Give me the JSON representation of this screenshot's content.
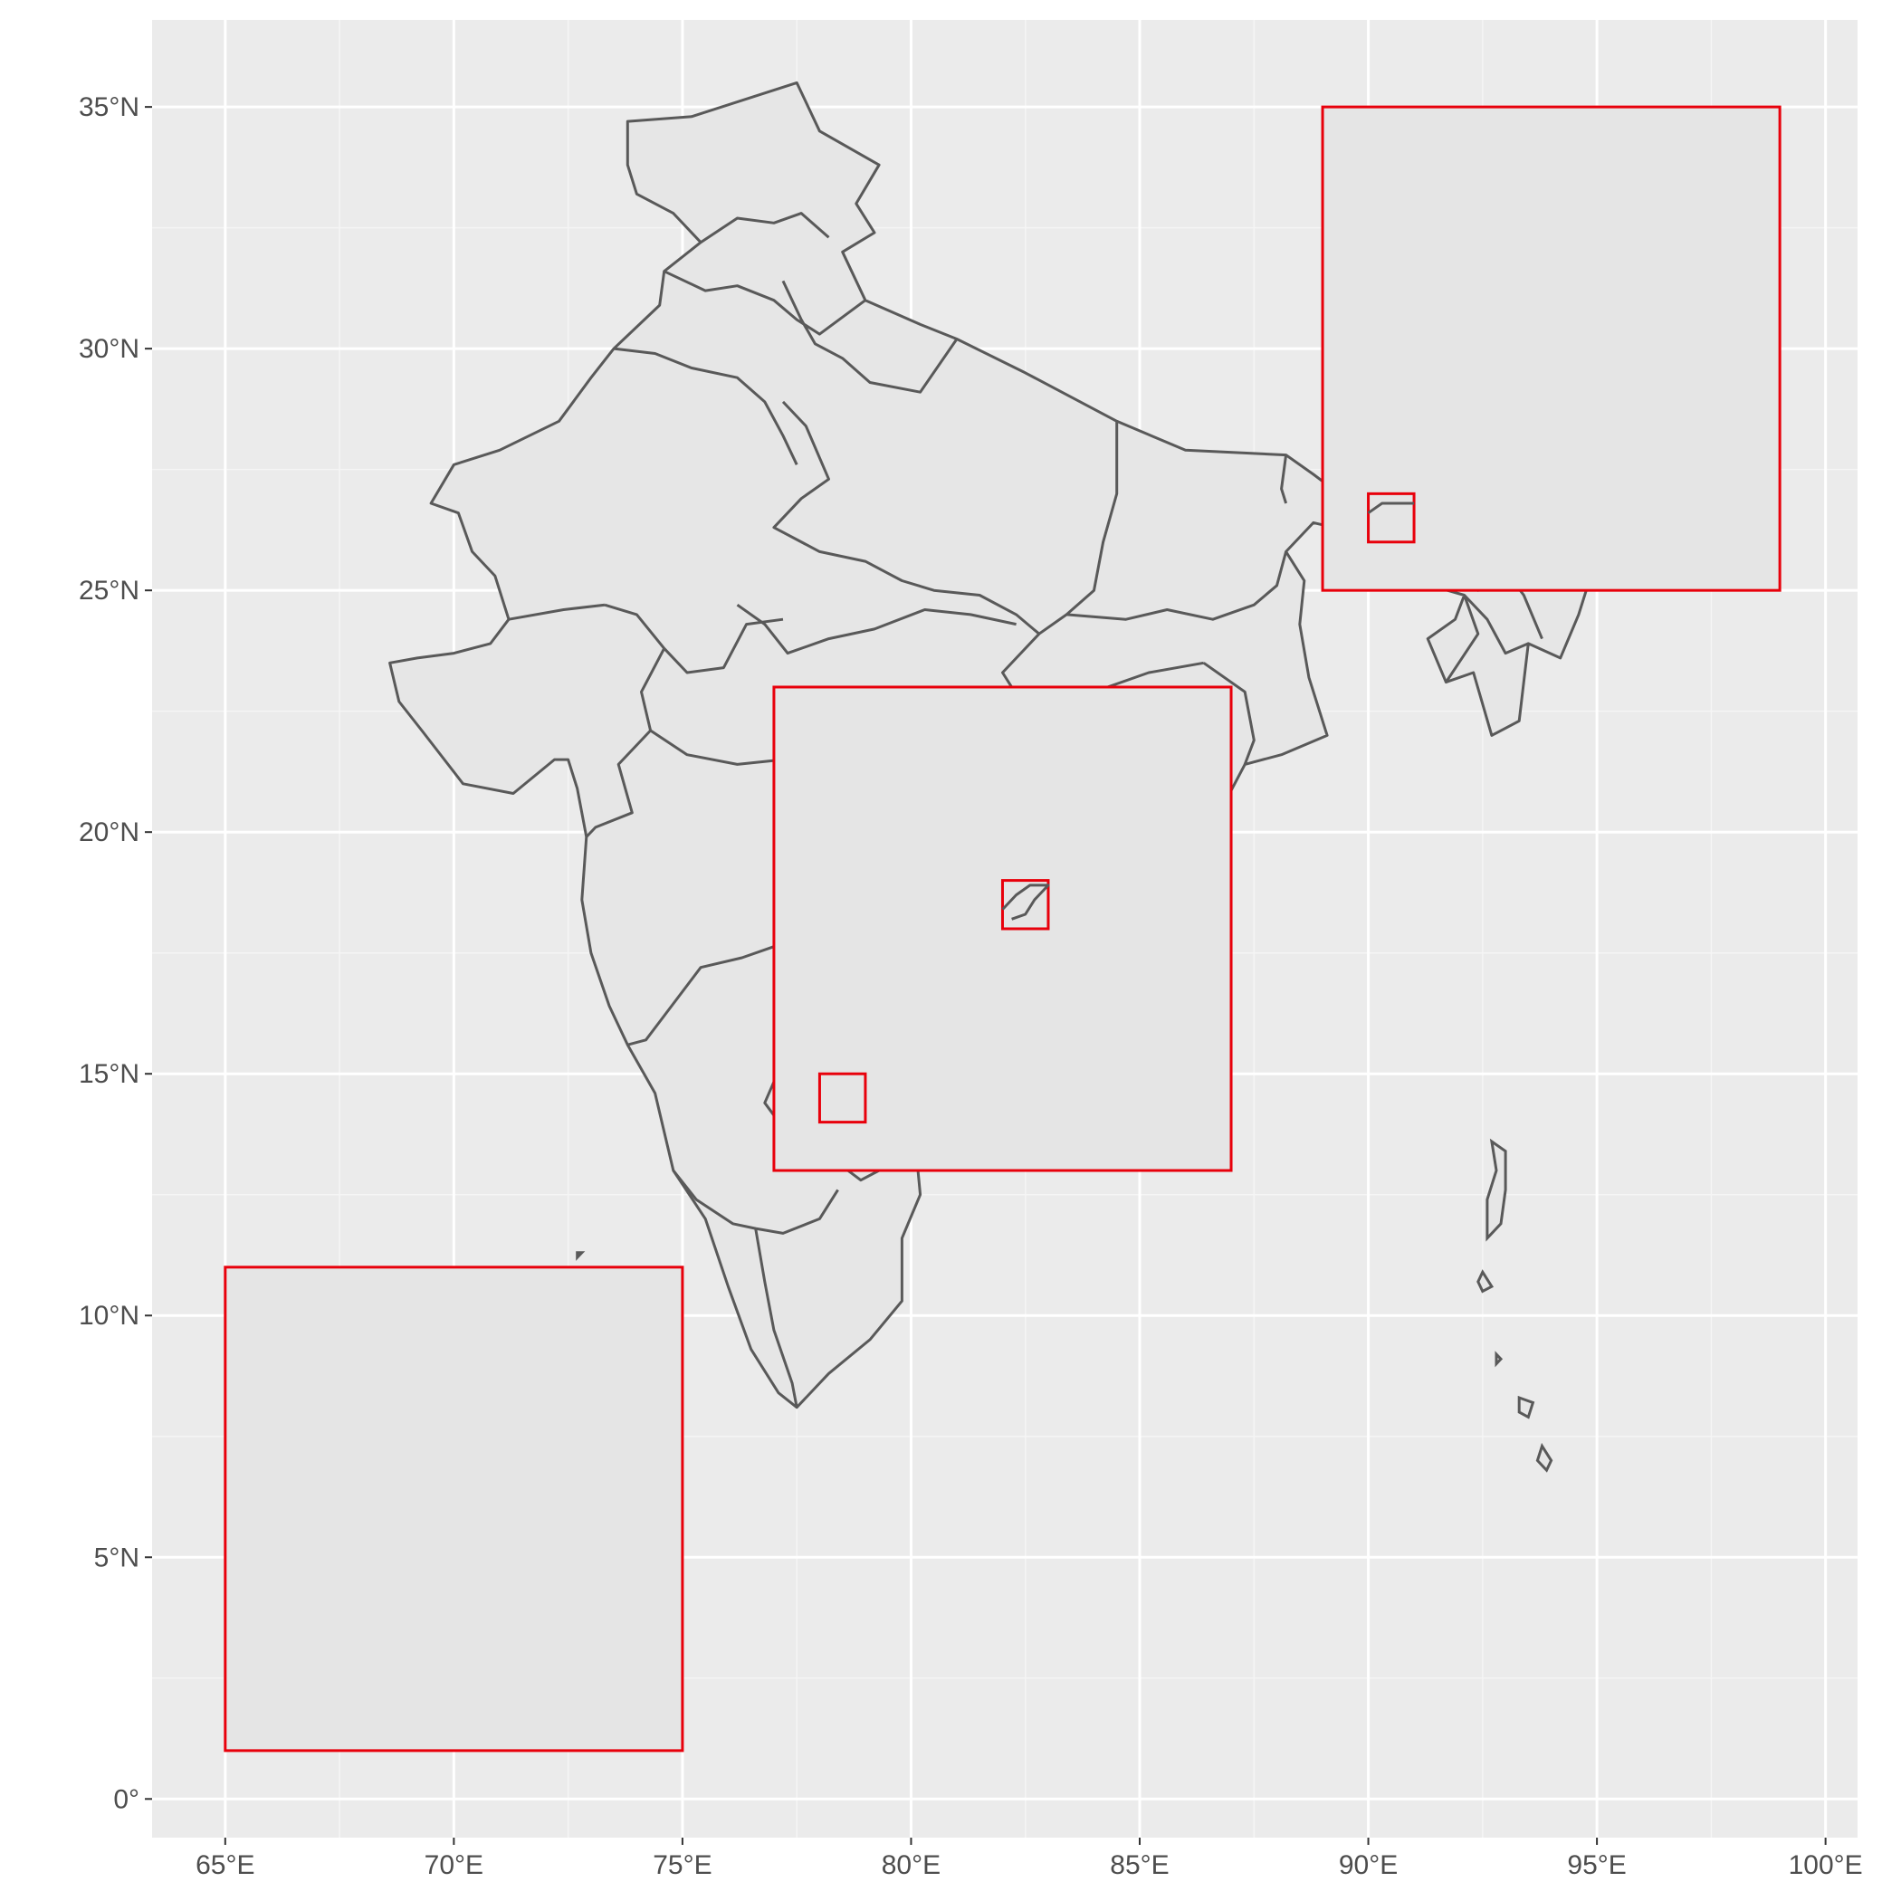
{
  "map": {
    "xlim": [
      63.4,
      100.7
    ],
    "ylim": [
      -0.8,
      36.8
    ],
    "x_ticks": [
      {
        "value": 65,
        "label": "65°E"
      },
      {
        "value": 70,
        "label": "70°E"
      },
      {
        "value": 75,
        "label": "75°E"
      },
      {
        "value": 80,
        "label": "80°E"
      },
      {
        "value": 85,
        "label": "85°E"
      },
      {
        "value": 90,
        "label": "90°E"
      },
      {
        "value": 95,
        "label": "95°E"
      },
      {
        "value": 100,
        "label": "100°E"
      }
    ],
    "y_ticks": [
      {
        "value": 0,
        "label": "0°"
      },
      {
        "value": 5,
        "label": "5°N"
      },
      {
        "value": 10,
        "label": "10°N"
      },
      {
        "value": 15,
        "label": "15°N"
      },
      {
        "value": 20,
        "label": "20°N"
      },
      {
        "value": 25,
        "label": "25°N"
      },
      {
        "value": 30,
        "label": "30°N"
      },
      {
        "value": 35,
        "label": "35°N"
      }
    ],
    "colors": {
      "panel": "#ebebeb",
      "grid": "#ffffff",
      "land_fill": "#e6e6e6",
      "land_stroke": "#595959",
      "box_stroke": "#e8000b"
    },
    "outline": [
      [
        73.8,
        34.7
      ],
      [
        75.2,
        34.8
      ],
      [
        77.5,
        35.5
      ],
      [
        78.0,
        34.5
      ],
      [
        79.3,
        33.8
      ],
      [
        78.8,
        33.0
      ],
      [
        79.2,
        32.4
      ],
      [
        78.5,
        32.0
      ],
      [
        79.0,
        31.0
      ],
      [
        80.2,
        30.5
      ],
      [
        81.0,
        30.2
      ],
      [
        82.5,
        29.5
      ],
      [
        84.5,
        28.5
      ],
      [
        86.0,
        27.9
      ],
      [
        88.2,
        27.8
      ],
      [
        88.8,
        27.4
      ],
      [
        89.5,
        26.9
      ],
      [
        91.0,
        26.8
      ],
      [
        92.1,
        26.9
      ],
      [
        92.5,
        27.8
      ],
      [
        93.8,
        28.5
      ],
      [
        95.4,
        29.2
      ],
      [
        96.4,
        29.0
      ],
      [
        97.2,
        28.3
      ],
      [
        96.9,
        27.4
      ],
      [
        96.0,
        27.1
      ],
      [
        95.2,
        26.4
      ],
      [
        94.9,
        25.4
      ],
      [
        94.6,
        24.5
      ],
      [
        94.2,
        23.6
      ],
      [
        93.5,
        23.9
      ],
      [
        93.3,
        22.3
      ],
      [
        92.7,
        22.0
      ],
      [
        92.3,
        23.3
      ],
      [
        91.7,
        23.1
      ],
      [
        91.3,
        24.0
      ],
      [
        91.9,
        24.4
      ],
      [
        92.1,
        24.9
      ],
      [
        91.0,
        25.2
      ],
      [
        89.9,
        25.3
      ],
      [
        89.7,
        26.2
      ],
      [
        88.8,
        26.4
      ],
      [
        88.2,
        25.8
      ],
      [
        88.6,
        25.2
      ],
      [
        88.5,
        24.3
      ],
      [
        88.7,
        23.2
      ],
      [
        89.1,
        22.0
      ],
      [
        88.1,
        21.6
      ],
      [
        87.3,
        21.4
      ],
      [
        86.8,
        20.5
      ],
      [
        85.5,
        19.6
      ],
      [
        84.6,
        18.6
      ],
      [
        83.5,
        17.8
      ],
      [
        82.3,
        16.6
      ],
      [
        81.3,
        16.0
      ],
      [
        80.2,
        15.2
      ],
      [
        80.1,
        13.5
      ],
      [
        80.2,
        12.5
      ],
      [
        79.8,
        11.6
      ],
      [
        79.8,
        10.3
      ],
      [
        79.1,
        9.5
      ],
      [
        78.2,
        8.8
      ],
      [
        77.5,
        8.1
      ],
      [
        77.1,
        8.4
      ],
      [
        76.5,
        9.3
      ],
      [
        76.0,
        10.6
      ],
      [
        75.5,
        12.0
      ],
      [
        74.8,
        13.0
      ],
      [
        74.4,
        14.6
      ],
      [
        73.8,
        15.6
      ],
      [
        73.4,
        16.4
      ],
      [
        73.0,
        17.5
      ],
      [
        72.8,
        18.6
      ],
      [
        72.9,
        19.9
      ],
      [
        72.7,
        20.9
      ],
      [
        72.5,
        21.5
      ],
      [
        72.2,
        21.5
      ],
      [
        71.3,
        20.8
      ],
      [
        70.2,
        21.0
      ],
      [
        69.3,
        22.1
      ],
      [
        68.8,
        22.7
      ],
      [
        68.6,
        23.5
      ],
      [
        69.2,
        23.6
      ],
      [
        70.0,
        23.7
      ],
      [
        70.8,
        23.9
      ],
      [
        71.2,
        24.4
      ],
      [
        70.9,
        25.3
      ],
      [
        70.4,
        25.8
      ],
      [
        70.1,
        26.6
      ],
      [
        69.5,
        26.8
      ],
      [
        70.0,
        27.6
      ],
      [
        71.0,
        27.9
      ],
      [
        72.3,
        28.5
      ],
      [
        73.0,
        29.4
      ],
      [
        73.5,
        30.0
      ],
      [
        74.5,
        30.9
      ],
      [
        74.6,
        31.6
      ],
      [
        75.4,
        32.2
      ],
      [
        74.8,
        32.8
      ],
      [
        74.0,
        33.2
      ],
      [
        73.8,
        33.8
      ],
      [
        73.8,
        34.7
      ]
    ],
    "borders": [
      [
        [
          75.4,
          32.2
        ],
        [
          76.2,
          32.7
        ],
        [
          77.0,
          32.6
        ],
        [
          77.6,
          32.8
        ],
        [
          78.2,
          32.3
        ]
      ],
      [
        [
          74.6,
          31.6
        ],
        [
          75.5,
          31.2
        ],
        [
          76.2,
          31.3
        ],
        [
          77.0,
          31.0
        ],
        [
          77.5,
          30.6
        ],
        [
          78.0,
          30.3
        ],
        [
          79.0,
          31.0
        ]
      ],
      [
        [
          77.2,
          31.4
        ],
        [
          77.6,
          30.6
        ],
        [
          77.9,
          30.1
        ],
        [
          78.5,
          29.8
        ],
        [
          79.1,
          29.3
        ],
        [
          80.2,
          29.1
        ],
        [
          81.0,
          30.2
        ]
      ],
      [
        [
          73.5,
          30.0
        ],
        [
          74.4,
          29.9
        ],
        [
          75.2,
          29.6
        ],
        [
          76.2,
          29.4
        ],
        [
          76.8,
          28.9
        ],
        [
          77.2,
          28.2
        ],
        [
          77.5,
          27.6
        ]
      ],
      [
        [
          77.2,
          28.9
        ],
        [
          77.7,
          28.4
        ],
        [
          78.2,
          27.3
        ],
        [
          77.6,
          26.9
        ],
        [
          77.0,
          26.3
        ],
        [
          78.0,
          25.8
        ],
        [
          79.0,
          25.6
        ],
        [
          79.8,
          25.2
        ],
        [
          80.5,
          25.0
        ],
        [
          81.5,
          24.9
        ],
        [
          82.3,
          24.5
        ],
        [
          82.8,
          24.1
        ],
        [
          83.4,
          24.5
        ],
        [
          84.0,
          25.0
        ],
        [
          84.2,
          26.0
        ],
        [
          84.5,
          27.0
        ],
        [
          84.5,
          28.5
        ]
      ],
      [
        [
          76.2,
          24.7
        ],
        [
          76.8,
          24.3
        ],
        [
          77.3,
          23.7
        ],
        [
          78.2,
          24.0
        ],
        [
          79.2,
          24.2
        ],
        [
          80.3,
          24.6
        ],
        [
          81.3,
          24.5
        ],
        [
          82.3,
          24.3
        ]
      ],
      [
        [
          73.3,
          24.7
        ],
        [
          74.0,
          24.5
        ],
        [
          74.6,
          23.8
        ],
        [
          75.1,
          23.3
        ],
        [
          75.9,
          23.4
        ],
        [
          76.4,
          24.3
        ],
        [
          77.2,
          24.4
        ]
      ],
      [
        [
          71.2,
          24.4
        ],
        [
          72.4,
          24.6
        ],
        [
          73.3,
          24.7
        ]
      ],
      [
        [
          74.6,
          23.8
        ],
        [
          74.1,
          22.9
        ],
        [
          74.3,
          22.1
        ],
        [
          73.6,
          21.4
        ],
        [
          73.9,
          20.4
        ],
        [
          73.1,
          20.1
        ],
        [
          72.9,
          19.9
        ]
      ],
      [
        [
          74.3,
          22.1
        ],
        [
          75.1,
          21.6
        ],
        [
          76.2,
          21.4
        ],
        [
          77.2,
          21.5
        ],
        [
          78.4,
          21.4
        ],
        [
          79.3,
          21.5
        ],
        [
          80.2,
          21.6
        ],
        [
          80.6,
          22.3
        ],
        [
          81.5,
          21.9
        ],
        [
          82.3,
          22.4
        ],
        [
          83.3,
          22.3
        ],
        [
          84.0,
          22.9
        ],
        [
          85.2,
          23.3
        ],
        [
          86.4,
          23.5
        ]
      ],
      [
        [
          82.8,
          24.1
        ],
        [
          82.0,
          23.3
        ],
        [
          82.6,
          22.4
        ],
        [
          83.3,
          21.6
        ],
        [
          82.4,
          20.6
        ],
        [
          81.8,
          19.3
        ],
        [
          81.2,
          18.2
        ],
        [
          81.0,
          17.8
        ]
      ],
      [
        [
          83.4,
          24.5
        ],
        [
          84.7,
          24.4
        ],
        [
          85.6,
          24.6
        ],
        [
          86.6,
          24.4
        ],
        [
          87.5,
          24.7
        ],
        [
          88.0,
          25.1
        ],
        [
          88.2,
          25.8
        ]
      ],
      [
        [
          86.4,
          23.5
        ],
        [
          87.3,
          22.9
        ],
        [
          87.5,
          21.9
        ],
        [
          87.3,
          21.4
        ]
      ],
      [
        [
          80.2,
          21.6
        ],
        [
          79.9,
          20.5
        ],
        [
          79.7,
          19.6
        ],
        [
          79.4,
          18.6
        ],
        [
          78.2,
          18.1
        ],
        [
          77.5,
          17.8
        ],
        [
          76.9,
          17.6
        ],
        [
          76.3,
          17.4
        ],
        [
          75.4,
          17.2
        ],
        [
          74.6,
          16.2
        ],
        [
          74.2,
          15.7
        ],
        [
          73.8,
          15.6
        ]
      ],
      [
        [
          80.2,
          18.7
        ],
        [
          79.5,
          17.9
        ],
        [
          79.2,
          17.1
        ],
        [
          79.4,
          16.0
        ],
        [
          80.1,
          15.9
        ]
      ],
      [
        [
          77.5,
          17.8
        ],
        [
          77.2,
          16.6
        ],
        [
          77.4,
          15.7
        ],
        [
          76.8,
          14.4
        ],
        [
          77.5,
          13.5
        ],
        [
          78.2,
          13.3
        ],
        [
          78.9,
          12.8
        ],
        [
          79.3,
          13.0
        ],
        [
          80.2,
          13.5
        ]
      ],
      [
        [
          74.8,
          13.0
        ],
        [
          75.3,
          12.4
        ],
        [
          76.1,
          11.9
        ],
        [
          76.6,
          11.8
        ],
        [
          77.2,
          11.7
        ],
        [
          78.0,
          12.0
        ],
        [
          78.4,
          12.6
        ]
      ],
      [
        [
          76.6,
          11.8
        ],
        [
          76.8,
          10.7
        ],
        [
          77.0,
          9.7
        ],
        [
          77.4,
          8.6
        ],
        [
          77.5,
          8.1
        ]
      ],
      [
        [
          91.0,
          25.2
        ],
        [
          91.8,
          25.2
        ],
        [
          92.4,
          25.0
        ],
        [
          93.0,
          25.4
        ],
        [
          93.5,
          26.0
        ],
        [
          94.1,
          26.5
        ],
        [
          95.2,
          26.4
        ]
      ],
      [
        [
          92.1,
          24.9
        ],
        [
          92.6,
          24.4
        ],
        [
          93.0,
          23.7
        ],
        [
          93.5,
          23.9
        ]
      ],
      [
        [
          91.7,
          23.1
        ],
        [
          92.4,
          24.1
        ],
        [
          92.1,
          24.9
        ]
      ],
      [
        [
          93.0,
          25.4
        ],
        [
          93.4,
          24.9
        ],
        [
          93.8,
          24.0
        ]
      ],
      [
        [
          89.5,
          26.9
        ],
        [
          90.5,
          26.5
        ],
        [
          91.6,
          26.7
        ],
        [
          92.1,
          26.9
        ]
      ],
      [
        [
          88.2,
          27.8
        ],
        [
          88.1,
          27.1
        ],
        [
          88.2,
          26.8
        ]
      ]
    ],
    "islands": [
      [
        [
          92.7,
          13.6
        ],
        [
          93.0,
          13.4
        ],
        [
          93.0,
          12.6
        ],
        [
          92.9,
          11.9
        ],
        [
          92.6,
          11.6
        ],
        [
          92.6,
          12.4
        ],
        [
          92.8,
          13.0
        ],
        [
          92.7,
          13.6
        ]
      ],
      [
        [
          92.5,
          10.9
        ],
        [
          92.7,
          10.6
        ],
        [
          92.5,
          10.5
        ],
        [
          92.4,
          10.7
        ],
        [
          92.5,
          10.9
        ]
      ],
      [
        [
          92.8,
          9.2
        ],
        [
          92.9,
          9.1
        ],
        [
          92.8,
          9.0
        ],
        [
          92.8,
          9.2
        ]
      ],
      [
        [
          93.3,
          8.3
        ],
        [
          93.6,
          8.2
        ],
        [
          93.5,
          7.9
        ],
        [
          93.3,
          8.0
        ],
        [
          93.3,
          8.3
        ]
      ],
      [
        [
          93.8,
          7.3
        ],
        [
          94.0,
          7.0
        ],
        [
          93.9,
          6.8
        ],
        [
          93.7,
          7.0
        ],
        [
          93.8,
          7.3
        ]
      ],
      [
        [
          72.7,
          11.2
        ],
        [
          72.8,
          11.3
        ],
        [
          72.7,
          11.3
        ],
        [
          72.7,
          11.2
        ]
      ]
    ],
    "boxes": [
      {
        "xmin": 89,
        "xmax": 99,
        "ymin": 25,
        "ymax": 35
      },
      {
        "xmin": 90,
        "xmax": 91,
        "ymin": 26,
        "ymax": 27
      },
      {
        "xmin": 77,
        "xmax": 87,
        "ymin": 13,
        "ymax": 23
      },
      {
        "xmin": 82,
        "xmax": 83,
        "ymin": 18,
        "ymax": 19
      },
      {
        "xmin": 78,
        "xmax": 79,
        "ymin": 14,
        "ymax": 15
      },
      {
        "xmin": 65,
        "xmax": 75,
        "ymin": 1,
        "ymax": 11
      }
    ],
    "inset_shapes": [
      {
        "box": 1,
        "points": [
          [
            90.0,
            26.6
          ],
          [
            90.3,
            26.8
          ],
          [
            90.6,
            26.8
          ],
          [
            91.0,
            26.8
          ]
        ]
      },
      {
        "box": 3,
        "points": [
          [
            82.0,
            18.4
          ],
          [
            82.3,
            18.7
          ],
          [
            82.6,
            18.9
          ],
          [
            83.0,
            18.9
          ],
          [
            82.7,
            18.6
          ],
          [
            82.5,
            18.3
          ],
          [
            82.2,
            18.2
          ]
        ]
      }
    ]
  }
}
